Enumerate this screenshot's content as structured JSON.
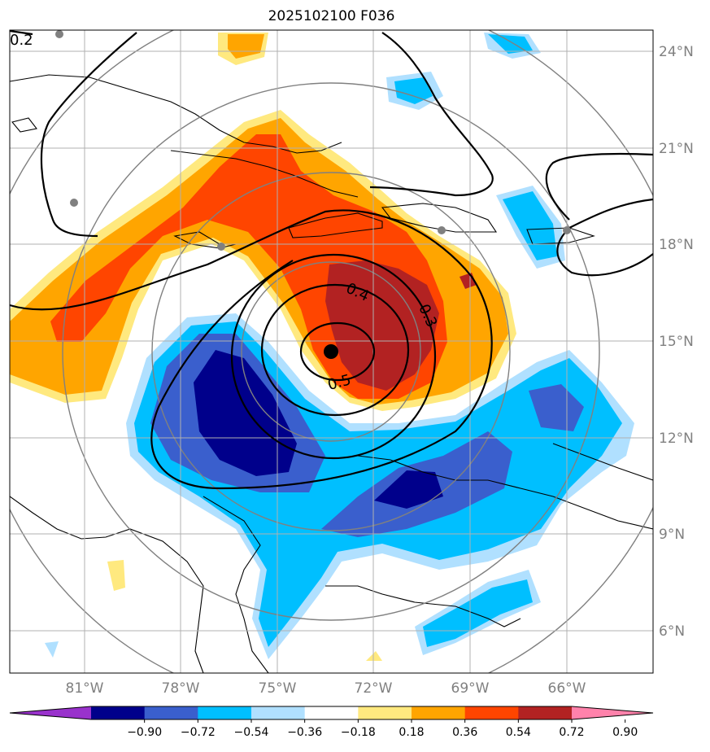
{
  "title": "2025102100 F036",
  "lat_labels": [
    "24°N",
    "21°N",
    "18°N",
    "15°N",
    "12°N",
    "9°N",
    "6°N"
  ],
  "lon_labels": [
    "81°W",
    "78°W",
    "75°W",
    "72°W",
    "69°W",
    "66°W"
  ],
  "contour_labels": [
    "0.2",
    "0.4",
    "0.3",
    "0.5"
  ],
  "colorbar": {
    "ticks": [
      "−0.90",
      "−0.72",
      "−0.54",
      "−0.36",
      "−0.18",
      "0.18",
      "0.36",
      "0.54",
      "0.72",
      "0.90"
    ],
    "colors": [
      "#9932cc",
      "#00008b",
      "#3a5fcd",
      "#00bfff",
      "#b0e0ff",
      "#ffffff",
      "#ffe97f",
      "#ffa500",
      "#ff4500",
      "#b22222",
      "#ff82ab"
    ]
  },
  "center_marker": "storm-center"
}
